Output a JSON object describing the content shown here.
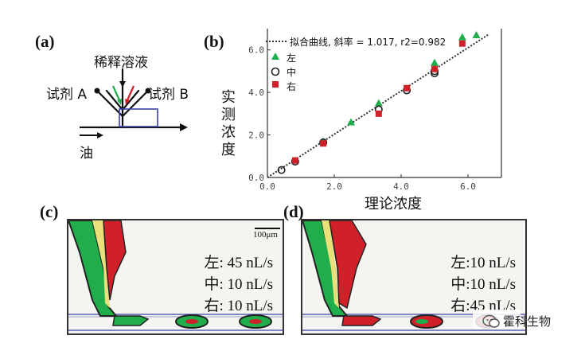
{
  "panel_a": {
    "label": "(a)",
    "dilution": "稀释溶液",
    "reagent_a": "试剂 A",
    "reagent_b": "试剂 B",
    "oil": "油"
  },
  "panel_b": {
    "label": "(b)",
    "ylabel": "实测浓度",
    "xlabel": "理论浓度",
    "fit_legend": "拟合曲线,  斜率 = 1.017,   r2=0.982",
    "legend": [
      "左",
      "中",
      "右"
    ],
    "x_ticks": [
      "0.0",
      "2.0",
      "4.0",
      "6.0"
    ],
    "y_ticks": [
      "0.0",
      "2.0",
      "4.0",
      "6.0"
    ]
  },
  "chart_data": {
    "type": "scatter",
    "xlabel": "理论浓度",
    "ylabel": "实测浓度",
    "xlim": [
      0,
      7
    ],
    "ylim": [
      0,
      7
    ],
    "fit": {
      "slope": 1.017,
      "r2": 0.982
    },
    "series": [
      {
        "name": "左",
        "marker": "triangle",
        "color": "#1fae4b",
        "x": [
          0.83,
          1.67,
          2.5,
          3.33,
          5.0,
          5.0,
          5.83,
          6.25
        ],
        "y": [
          0.8,
          1.7,
          2.6,
          3.5,
          5.4,
          5.2,
          6.6,
          6.7
        ]
      },
      {
        "name": "中",
        "marker": "circle",
        "color": "#222222",
        "x": [
          0.42,
          0.83,
          1.67,
          3.33,
          4.17,
          5.0,
          5.0
        ],
        "y": [
          0.35,
          0.75,
          1.65,
          3.2,
          4.1,
          5.0,
          4.9
        ]
      },
      {
        "name": "右",
        "marker": "square",
        "color": "#d0202a",
        "x": [
          0.83,
          1.67,
          3.33,
          4.17,
          5.0,
          5.83
        ],
        "y": [
          0.8,
          1.6,
          3.0,
          4.2,
          5.1,
          6.3
        ]
      }
    ]
  },
  "panel_c": {
    "label": "(c)",
    "scale": "100μm",
    "rates": [
      "左: 45 nL/s",
      "中:  10 nL/s",
      "右: 10 nL/s"
    ]
  },
  "panel_d": {
    "label": "(d)",
    "rates": [
      "左:10 nL/s",
      "中:10 nL/s",
      "右:45 nL/s"
    ]
  },
  "watermark": "霍科生物",
  "colors": {
    "green": "#1fae4b",
    "red": "#d0202a",
    "yellow": "#e8e07a",
    "blue": "#3b43a8"
  }
}
